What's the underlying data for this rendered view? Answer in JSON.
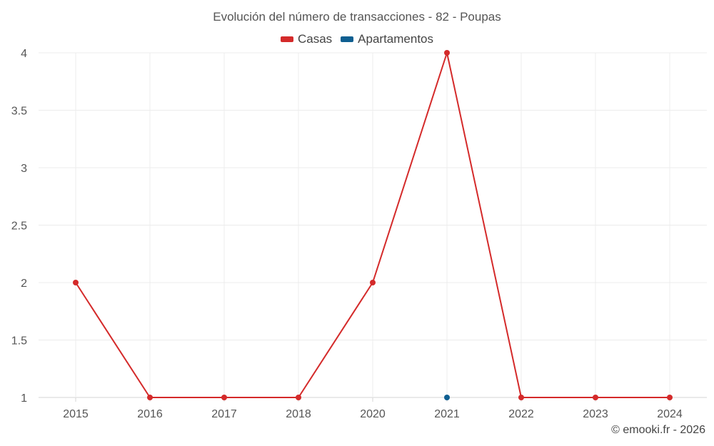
{
  "chart_data": {
    "type": "line",
    "title": "Evolución del número de transacciones - 82 - Poupas",
    "categories": [
      "2015",
      "2016",
      "2017",
      "2018",
      "2020",
      "2021",
      "2022",
      "2023",
      "2024"
    ],
    "series": [
      {
        "name": "Casas",
        "color": "#d42a2a",
        "values": [
          2,
          1,
          1,
          1,
          2,
          4,
          1,
          1,
          1
        ]
      },
      {
        "name": "Apartamentos",
        "color": "#0e5f91",
        "values": [
          null,
          null,
          null,
          null,
          null,
          1,
          null,
          null,
          null
        ]
      }
    ],
    "y_ticks": [
      "1",
      "1.5",
      "2",
      "2.5",
      "3",
      "3.5",
      "4"
    ],
    "ylim": [
      1,
      4
    ],
    "grid": true,
    "legend_position": "top-center"
  },
  "footer": {
    "credit": "© emooki.fr - 2026"
  }
}
